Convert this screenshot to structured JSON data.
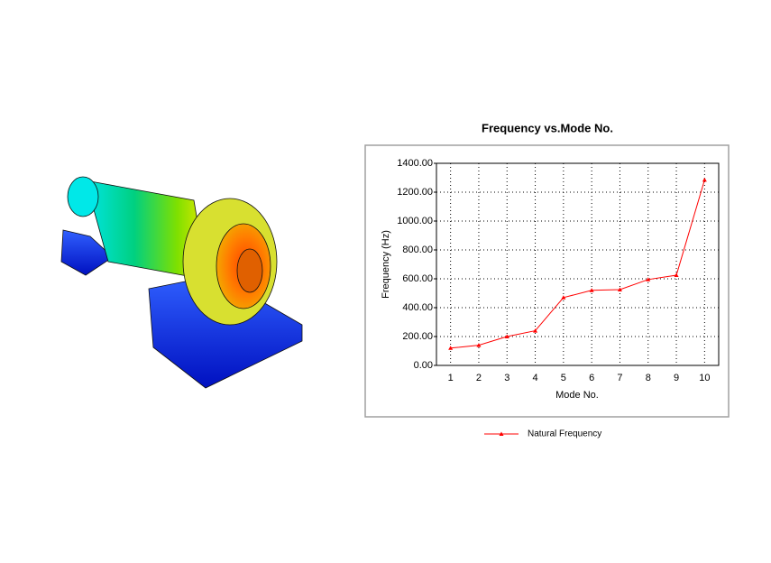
{
  "chart_data": {
    "type": "line",
    "title": "Frequency vs.Mode No.",
    "x_label": "Mode No.",
    "y_label": "Frequency (Hz)",
    "categories": [
      "1",
      "2",
      "3",
      "4",
      "5",
      "6",
      "7",
      "8",
      "9",
      "10"
    ],
    "series": [
      {
        "name": "Natural Frequency",
        "color": "#ff0000",
        "values": [
          120,
          140,
          200,
          240,
          470,
          520,
          525,
          595,
          625,
          1285
        ]
      }
    ],
    "ylim": [
      0,
      1400
    ],
    "yticks": [
      {
        "value": 0,
        "label": "0.00"
      },
      {
        "value": 200,
        "label": "200.00"
      },
      {
        "value": 400,
        "label": "400.00"
      },
      {
        "value": 600,
        "label": "600.00"
      },
      {
        "value": 800,
        "label": "800.00"
      },
      {
        "value": 1000,
        "label": "1000.00"
      },
      {
        "value": 1200,
        "label": "1200.00"
      },
      {
        "value": 1400,
        "label": "1400.00"
      }
    ],
    "grid": true,
    "legend": "bottom"
  }
}
